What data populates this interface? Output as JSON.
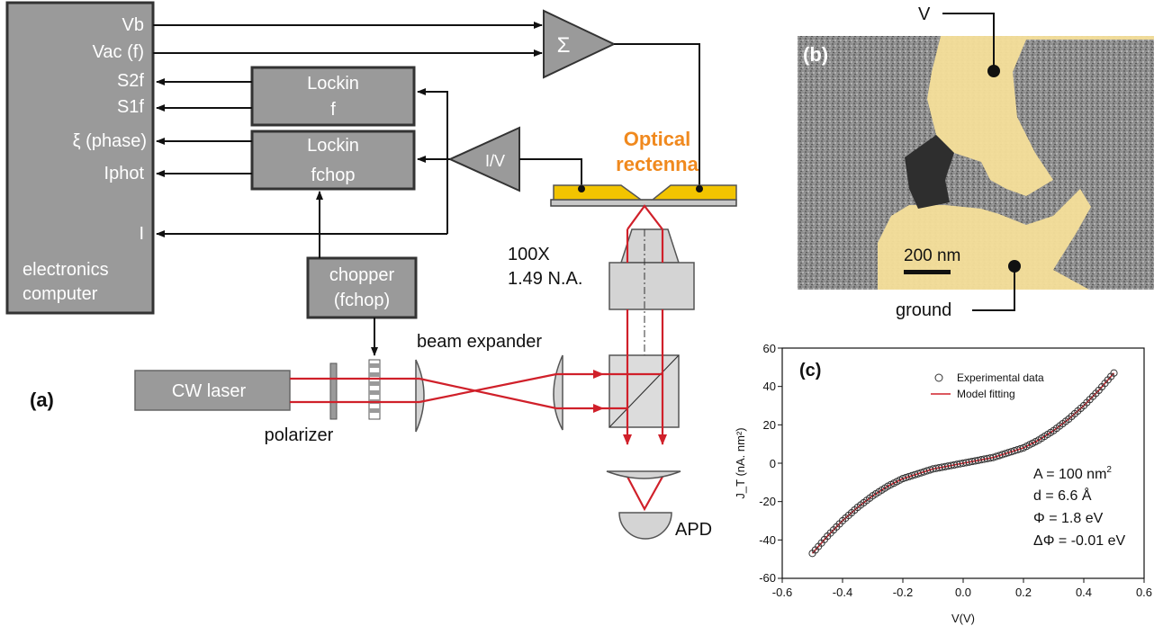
{
  "panel_a": {
    "label": "(a)",
    "computer": {
      "ports": [
        "Vb",
        "Vac (f)",
        "S2f",
        "S1f",
        "ξ (phase)",
        "Iphot",
        "I"
      ],
      "name_line1": "electronics",
      "name_line2": "computer"
    },
    "lockin_f": {
      "line1": "Lockin",
      "line2": "f"
    },
    "lockin_fchop": {
      "line1": "Lockin",
      "line2": "fchop"
    },
    "sum_symbol": "Σ",
    "iv_converter": "I/V",
    "chopper": {
      "line1": "chopper",
      "line2": "(fchop)"
    },
    "rectenna": {
      "line1": "Optical",
      "line2": "rectenna"
    },
    "objective": {
      "line1": "100X",
      "line2": "1.49 N.A."
    },
    "laser": "CW laser",
    "polarizer": "polarizer",
    "beam_expander": "beam expander",
    "detector": "APD"
  },
  "panel_b": {
    "label": "(b)",
    "top_contact": "V",
    "bottom_contact": "ground",
    "scale_bar": "200 nm"
  },
  "panel_c": {
    "label": "(c)",
    "legend": [
      "Experimental data",
      "Model fitting"
    ],
    "params": [
      "A = 100 nm",
      "d = 6.6 Å",
      "Φ = 1.8 eV",
      "ΔΦ = -0.01 eV"
    ],
    "area_superscript": "2"
  },
  "chart_data": {
    "type": "scatter",
    "xlabel": "V(V)",
    "ylabel": "J_T (nA. nm²)",
    "xlim": [
      -0.6,
      0.6
    ],
    "ylim": [
      -60,
      60
    ],
    "x_ticks": [
      "-0.6",
      "-0.4",
      "-0.2",
      "0.0",
      "0.2",
      "0.4",
      "0.6"
    ],
    "y_ticks": [
      "60",
      "40",
      "20",
      "0",
      "-20",
      "-40",
      "-60"
    ],
    "series": [
      {
        "name": "Experimental data",
        "marker": "open-circle",
        "x": [
          -0.5,
          -0.45,
          -0.4,
          -0.35,
          -0.3,
          -0.25,
          -0.2,
          -0.15,
          -0.1,
          -0.05,
          0.0,
          0.05,
          0.1,
          0.15,
          0.2,
          0.25,
          0.3,
          0.35,
          0.4,
          0.45,
          0.5
        ],
        "y": [
          -47,
          -38,
          -30,
          -23,
          -17,
          -12,
          -8,
          -5.5,
          -3,
          -1.5,
          0,
          1.5,
          3,
          5.5,
          8,
          12,
          17,
          23,
          30,
          38,
          47
        ]
      },
      {
        "name": "Model fitting",
        "marker": "line",
        "x": [
          -0.5,
          -0.45,
          -0.4,
          -0.35,
          -0.3,
          -0.25,
          -0.2,
          -0.15,
          -0.1,
          -0.05,
          0.0,
          0.05,
          0.1,
          0.15,
          0.2,
          0.25,
          0.3,
          0.35,
          0.4,
          0.45,
          0.5
        ],
        "y": [
          -47,
          -38,
          -30,
          -23,
          -17,
          -12,
          -8,
          -5.5,
          -3,
          -1.5,
          0,
          1.5,
          3,
          5.5,
          8,
          12,
          17,
          23,
          30,
          38,
          47
        ]
      }
    ],
    "colors": {
      "experimental": "#333333",
      "fit": "#d0202a"
    }
  }
}
